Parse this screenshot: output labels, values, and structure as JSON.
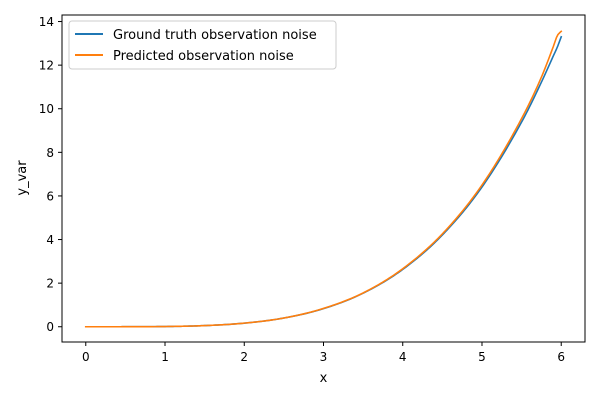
{
  "chart_data": {
    "type": "line",
    "title": "",
    "xlabel": "x",
    "ylabel": "y_var",
    "xlim": [
      -0.3,
      6.3
    ],
    "ylim": [
      -0.7,
      14.3
    ],
    "xticks": [
      0,
      1,
      2,
      3,
      4,
      5,
      6
    ],
    "yticks": [
      0,
      2,
      4,
      6,
      8,
      10,
      12,
      14
    ],
    "grid": false,
    "legend_position": "upper left",
    "x": [
      0,
      0.5,
      1,
      1.5,
      2,
      2.5,
      3,
      3.5,
      4,
      4.5,
      5,
      5.5,
      5.75,
      5.9,
      5.95,
      6
    ],
    "series": [
      {
        "name": "Ground truth observation noise",
        "color": "#1f77b4",
        "values": [
          0,
          0.0006,
          0.0103,
          0.052,
          0.164,
          0.4,
          0.83,
          1.54,
          2.63,
          4.21,
          6.41,
          9.39,
          11.22,
          12.42,
          12.82,
          13.3
        ]
      },
      {
        "name": "Predicted observation noise",
        "color": "#ff7f0e",
        "values": [
          0,
          0.0006,
          0.0103,
          0.052,
          0.165,
          0.4,
          0.84,
          1.55,
          2.66,
          4.26,
          6.5,
          9.55,
          11.45,
          12.85,
          13.35,
          13.55
        ]
      }
    ]
  }
}
